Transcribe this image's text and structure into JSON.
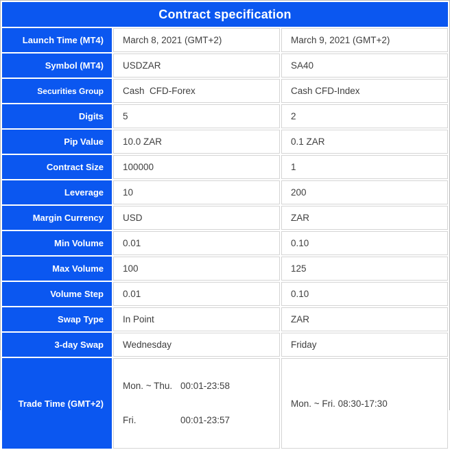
{
  "colors": {
    "accent_blue": "#0b57f0",
    "value_text": "#3e3e3e",
    "grid_line": "#d4d4d4"
  },
  "header": {
    "title": "Contract specification"
  },
  "table": {
    "rows": [
      {
        "label": "Launch Time (MT4)",
        "col1": "March 8, 2021 (GMT+2)",
        "col2": "March 9, 2021 (GMT+2)"
      },
      {
        "label": "Symbol (MT4)",
        "col1": "USDZAR",
        "col2": "SA40"
      },
      {
        "label": "Securities Group",
        "col1": "Cash  CFD-Forex",
        "col2": "Cash CFD-Index"
      },
      {
        "label": "Digits",
        "col1": "5",
        "col2": "2"
      },
      {
        "label": "Pip Value",
        "col1": "10.0 ZAR",
        "col2": "0.1 ZAR"
      },
      {
        "label": "Contract Size",
        "col1": "100000",
        "col2": "1"
      },
      {
        "label": "Leverage",
        "col1": "10",
        "col2": "200"
      },
      {
        "label": "Margin Currency",
        "col1": "USD",
        "col2": "ZAR"
      },
      {
        "label": "Min Volume",
        "col1": "0.01",
        "col2": "0.10"
      },
      {
        "label": "Max Volume",
        "col1": "100",
        "col2": "125"
      },
      {
        "label": "Volume Step",
        "col1": "0.01",
        "col2": "0.10"
      },
      {
        "label": "Swap Type",
        "col1": "In Point",
        "col2": "ZAR"
      },
      {
        "label": "3-day Swap",
        "col1": "Wednesday",
        "col2": "Friday"
      },
      {
        "label": "Trade Time (GMT+2)",
        "col1_line1_day": "Mon. ~ Thu.",
        "col1_line1_time": "00:01-23:58",
        "col1_line2_day": "Fri.",
        "col1_line2_time": "00:01-23:57",
        "col2": "Mon. ~ Fri. 08:30-17:30"
      }
    ]
  }
}
